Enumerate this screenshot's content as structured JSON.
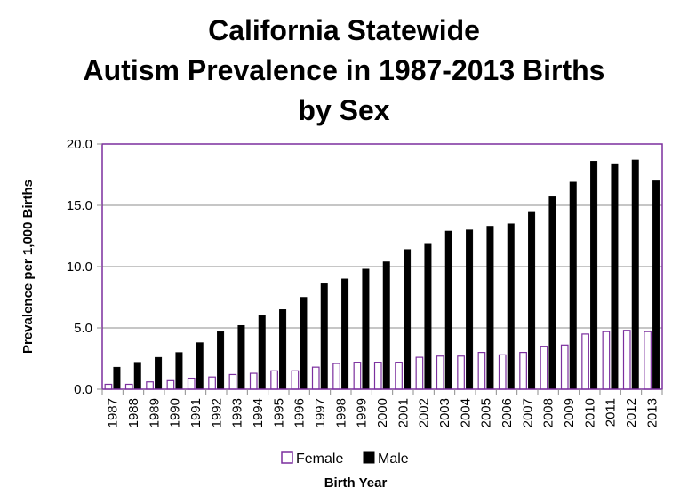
{
  "chart_data": {
    "type": "bar",
    "title_lines": [
      "California Statewide",
      "Autism Prevalence in 1987-2013 Births",
      "by Sex"
    ],
    "xlabel": "Birth Year",
    "ylabel": "Prevalence per 1,000 Births",
    "ylim": [
      0,
      20
    ],
    "y_ticks": [
      "0.0",
      "5.0",
      "10.0",
      "15.0",
      "20.0"
    ],
    "grid": true,
    "legend_position": "bottom",
    "categories": [
      "1987",
      "1988",
      "1989",
      "1990",
      "1991",
      "1992",
      "1993",
      "1994",
      "1995",
      "1996",
      "1997",
      "1998",
      "1999",
      "2000",
      "2001",
      "2002",
      "2003",
      "2004",
      "2005",
      "2006",
      "2007",
      "2008",
      "2009",
      "2010",
      "2011",
      "2012",
      "2013"
    ],
    "series": [
      {
        "name": "Female",
        "fill": "#ffffff",
        "stroke": "#7b2f9e",
        "values": [
          0.4,
          0.4,
          0.6,
          0.7,
          0.9,
          1.0,
          1.2,
          1.3,
          1.5,
          1.5,
          1.8,
          2.1,
          2.2,
          2.2,
          2.2,
          2.6,
          2.7,
          2.7,
          3.0,
          2.8,
          3.0,
          3.5,
          3.6,
          4.5,
          4.7,
          4.8,
          4.7
        ]
      },
      {
        "name": "Male",
        "fill": "#000000",
        "stroke": "#000000",
        "values": [
          1.8,
          2.2,
          2.6,
          3.0,
          3.8,
          4.7,
          5.2,
          6.0,
          6.5,
          7.5,
          8.6,
          9.0,
          9.8,
          10.4,
          11.4,
          11.9,
          12.9,
          13.0,
          13.3,
          13.5,
          14.5,
          15.7,
          16.9,
          18.6,
          18.4,
          18.7,
          17.0
        ]
      }
    ]
  },
  "colors": {
    "plot_border": "#7b2f9e",
    "grid": "#8c8c8c",
    "axis": "#8c8c8c"
  }
}
